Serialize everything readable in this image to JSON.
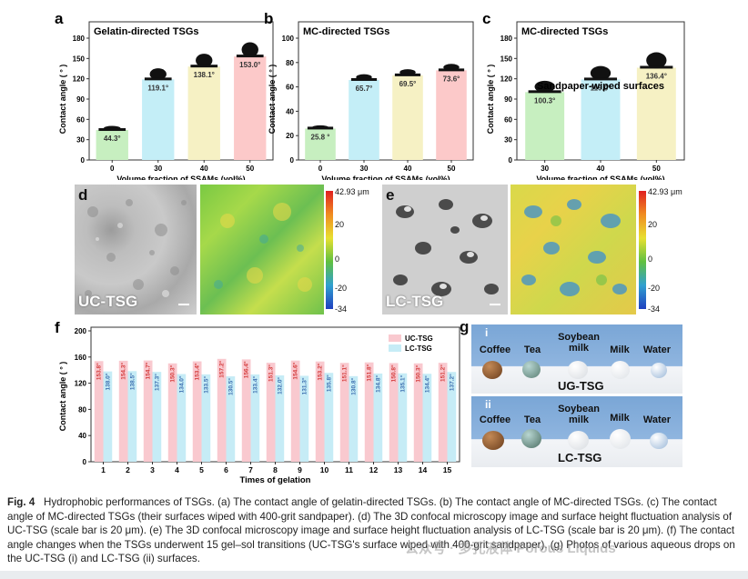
{
  "figure": {
    "panels_top": [
      {
        "letter": "a",
        "chart_data": {
          "type": "bar",
          "title": "Gelatin-directed TSGs",
          "xlabel": "Volume fraction of SSAMs (vol%)",
          "ylabel": "Contact angle ( ° )",
          "categories": [
            "0",
            "30",
            "40",
            "50"
          ],
          "values": [
            44.3,
            119.1,
            138.1,
            153.0
          ],
          "value_labels": [
            "44.3°",
            "119.1°",
            "138.1°",
            "153.0°"
          ],
          "colors": [
            "#c7efc0",
            "#c4eef7",
            "#f6f1c4",
            "#fcc9c9"
          ],
          "ylim": [
            0,
            180
          ],
          "yticks": [
            "0",
            "30",
            "60",
            "90",
            "120",
            "150",
            "180"
          ]
        }
      },
      {
        "letter": "b",
        "chart_data": {
          "type": "bar",
          "title": "MC-directed TSGs",
          "xlabel": "Volume fraction of SSAMs (vol%)",
          "ylabel": "Contact angle ( ° )",
          "categories": [
            "0",
            "30",
            "40",
            "50"
          ],
          "values": [
            25.8,
            65.7,
            69.5,
            73.6
          ],
          "value_labels": [
            "25.8 °",
            "65.7°",
            "69.5°",
            "73.6°"
          ],
          "colors": [
            "#c7efc0",
            "#c4eef7",
            "#f6f1c4",
            "#fcc9c9"
          ],
          "ylim": [
            0,
            100
          ],
          "yticks": [
            "0",
            "20",
            "40",
            "60",
            "80",
            "100"
          ]
        }
      },
      {
        "letter": "c",
        "chart_data": {
          "type": "bar",
          "title": "MC-directed TSGs",
          "annotation": "Sandpaper-wiped surfaces",
          "xlabel": "Volume fraction of SSAMs (vol%)",
          "ylabel": "Contact angle ( ° )",
          "categories": [
            "30",
            "40",
            "50"
          ],
          "values": [
            100.3,
            119.0,
            136.4
          ],
          "value_labels": [
            "100.3°",
            "119.0°",
            "136.4°"
          ],
          "colors": [
            "#c7efc0",
            "#c4eef7",
            "#f6f1c4"
          ],
          "ylim": [
            0,
            180
          ],
          "yticks": [
            "0",
            "30",
            "60",
            "90",
            "120",
            "150",
            "180"
          ]
        }
      }
    ],
    "panel_d": {
      "letter": "d",
      "label": "UC-TSG",
      "colorbar_top": "42.93 μm",
      "colorbar_ticks": [
        "20",
        "0",
        "-20",
        "-34"
      ]
    },
    "panel_e": {
      "letter": "e",
      "label": "LC-TSG",
      "colorbar_top": "42.93 μm",
      "colorbar_ticks": [
        "20",
        "0",
        "-20",
        "-34"
      ]
    },
    "panel_f": {
      "letter": "f",
      "chart_data": {
        "type": "bar",
        "xlabel": "Times of gelation",
        "ylabel": "Contact angle ( ° )",
        "categories": [
          "1",
          "2",
          "3",
          "4",
          "5",
          "6",
          "7",
          "8",
          "9",
          "10",
          "11",
          "12",
          "13",
          "14",
          "15"
        ],
        "ylim": [
          0,
          200
        ],
        "yticks": [
          "0",
          "40",
          "80",
          "120",
          "160",
          "200"
        ],
        "legend_position": "top-right",
        "series": [
          {
            "name": "UC-TSG",
            "color": "#f9c9cf",
            "values": [
              153.8,
              154.3,
              154.7,
              150.3,
              153.4,
              157.2,
              156.4,
              151.3,
              154.6,
              153.2,
              151.1,
              151.8,
              150.8,
              150.3,
              151.2
            ],
            "labels": [
              "153.8°",
              "154.3°",
              "154.7°",
              "150.3°",
              "153.4°",
              "157.2°",
              "156.4°",
              "151.3°",
              "154.6°",
              "153.2°",
              "151.1°",
              "151.8°",
              "150.8°",
              "150.3°",
              "151.2°"
            ]
          },
          {
            "name": "LC-TSG",
            "color": "#c6ecf6",
            "values": [
              138.0,
              138.5,
              137.3,
              134.0,
              133.5,
              130.5,
              133.4,
              132.0,
              131.3,
              135.8,
              130.8,
              134.8,
              135.1,
              134.4,
              137.2
            ],
            "labels": [
              "138.0°",
              "138.5°",
              "137.3°",
              "134.0°",
              "133.5°",
              "130.5°",
              "133.4°",
              "132.0°",
              "131.3°",
              "135.8°",
              "130.8°",
              "134.8°",
              "135.1°",
              "134.4°",
              "137.2°"
            ]
          }
        ]
      }
    },
    "panel_g": {
      "letter": "g",
      "row_i": {
        "roman": "i",
        "title": "UG-TSG",
        "drops": [
          "Coffee",
          "Tea",
          "Soybean milk",
          "Milk",
          "Water"
        ]
      },
      "row_ii": {
        "roman": "ii",
        "title": "LC-TSG",
        "drops": [
          "Coffee",
          "Tea",
          "Soybean milk",
          "Milk",
          "Water"
        ]
      }
    }
  },
  "caption": {
    "label": "Fig. 4",
    "text": "Hydrophobic performances of TSGs. (a) The contact angle of gelatin-directed TSGs. (b) The contact angle of MC-directed TSGs. (c) The contact angle of MC-directed TSGs (their surfaces wiped with 400-grit sandpaper). (d) The 3D confocal microscopy image and surface height fluctuation analysis of UC-TSG (scale bar is 20 μm). (e) The 3D confocal microscopy image and surface height fluctuation analysis of LC-TSG (scale bar is 20 μm). (f) The contact angle changes when the TSGs underwent 15 gel–sol transitions (UC-TSG's surface wiped with 400-grit sandpaper). (g) Photos of various aqueous drops on the UC-TSG (i) and LC-TSG (ii) surfaces."
  },
  "watermark": "公众号 · 多孔液体 Porous Liquids"
}
